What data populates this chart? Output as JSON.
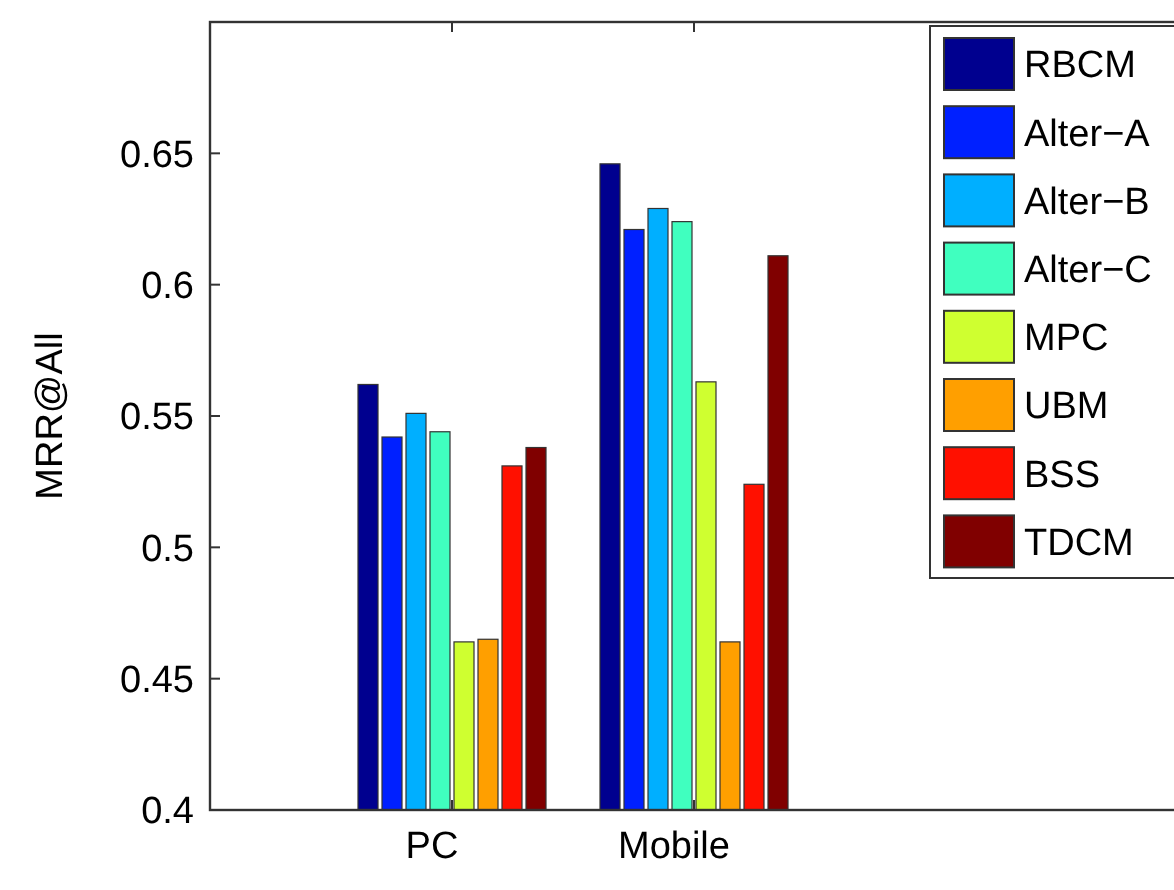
{
  "chart_data": {
    "type": "bar",
    "ylabel": "MRR@All",
    "categories": [
      "PC",
      "Mobile"
    ],
    "series": [
      {
        "name": "RBCM",
        "color": "#00008f",
        "values": [
          0.562,
          0.646
        ]
      },
      {
        "name": "Alter−A",
        "color": "#0020ff",
        "values": [
          0.542,
          0.621
        ]
      },
      {
        "name": "Alter−B",
        "color": "#00afff",
        "values": [
          0.551,
          0.629
        ]
      },
      {
        "name": "Alter−C",
        "color": "#40ffbf",
        "values": [
          0.544,
          0.624
        ]
      },
      {
        "name": "MPC",
        "color": "#cfff30",
        "values": [
          0.464,
          0.563
        ]
      },
      {
        "name": "UBM",
        "color": "#ff9f00",
        "values": [
          0.465,
          0.464
        ]
      },
      {
        "name": "BSS",
        "color": "#ff1000",
        "values": [
          0.531,
          0.524
        ]
      },
      {
        "name": "TDCM",
        "color": "#800000",
        "values": [
          0.538,
          0.611
        ]
      }
    ],
    "ylim": [
      0.4,
      0.7
    ],
    "yticks": [
      0.4,
      0.45,
      0.5,
      0.55,
      0.6,
      0.65
    ],
    "grid": false,
    "legend": "top right"
  }
}
